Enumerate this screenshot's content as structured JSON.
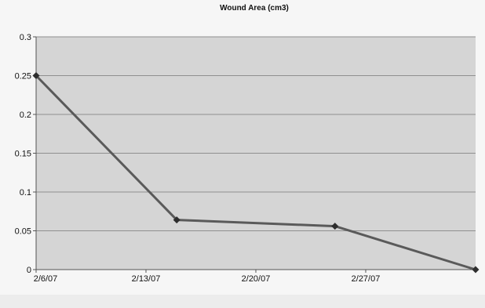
{
  "chart_data": {
    "type": "line",
    "title": "Wound Area (cm3)",
    "xlabel": "",
    "ylabel": "",
    "x_tick_labels": [
      "2/6/07",
      "2/13/07",
      "2/20/07",
      "2/27/07"
    ],
    "y_tick_labels": [
      "0",
      "0.05",
      "0.1",
      "0.15",
      "0.2",
      "0.25",
      "0.3"
    ],
    "y_ticks": [
      0,
      0.05,
      0.1,
      0.15,
      0.2,
      0.25,
      0.3
    ],
    "ylim": [
      0,
      0.3
    ],
    "x_range": [
      "2007-02-06",
      "2007-03-03"
    ],
    "grid": "horizontal",
    "legend": "none",
    "series": [
      {
        "x": [
          "2007-02-06",
          "2007-02-14",
          "2007-02-23",
          "2007-03-03"
        ],
        "values": [
          0.25,
          0.064,
          0.056,
          0
        ]
      }
    ],
    "colors": {
      "plot_background": "#d5d5d5",
      "line": "#5a5a5a",
      "marker": "#2e2e2e",
      "gridline": "#8f8f8f"
    }
  }
}
